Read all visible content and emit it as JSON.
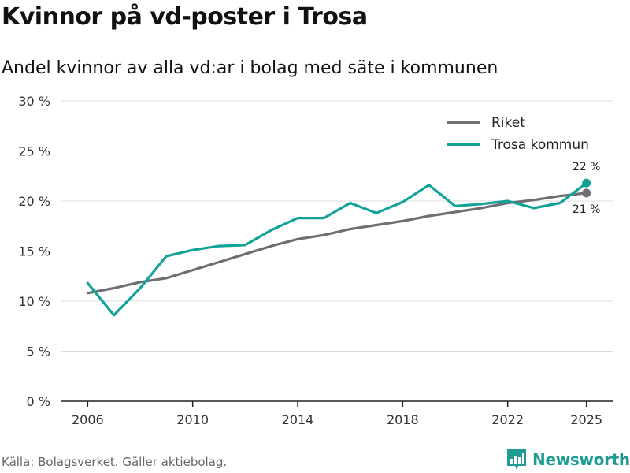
{
  "header": {
    "title": "Kvinnor på vd-poster i Trosa",
    "subtitle": "Andel kvinnor av alla vd:ar i bolag med säte i kommunen"
  },
  "footer": {
    "source": "Källa: Bolagsverket. Gäller aktiebolag.",
    "brand": "Newsworthy"
  },
  "chart_data": {
    "type": "line",
    "title": "Kvinnor på vd-poster i Trosa",
    "subtitle": "Andel kvinnor av alla vd:ar i bolag med säte i kommunen",
    "xlabel": "",
    "ylabel": "",
    "x": [
      2006,
      2007,
      2008,
      2009,
      2010,
      2011,
      2012,
      2013,
      2014,
      2015,
      2016,
      2017,
      2018,
      2019,
      2020,
      2021,
      2022,
      2023,
      2024,
      2025
    ],
    "xlim": [
      2005,
      2026
    ],
    "ylim": [
      0,
      30
    ],
    "x_ticks": [
      2006,
      2010,
      2014,
      2018,
      2022,
      2025
    ],
    "x_tick_labels": [
      "2006",
      "2010",
      "2014",
      "2018",
      "2022",
      "2025"
    ],
    "y_ticks": [
      0,
      5,
      10,
      15,
      20,
      25,
      30
    ],
    "y_tick_labels": [
      "0 %",
      "5 %",
      "10 %",
      "15 %",
      "20 %",
      "25 %",
      "30 %"
    ],
    "grid": true,
    "legend_position": "top-right",
    "series": [
      {
        "name": "Riket",
        "color": "#6f6e75",
        "values": [
          10.8,
          11.3,
          11.9,
          12.3,
          13.1,
          13.9,
          14.7,
          15.5,
          16.2,
          16.6,
          17.2,
          17.6,
          18.0,
          18.5,
          18.9,
          19.3,
          19.8,
          20.1,
          20.5,
          20.8
        ],
        "end_label": "21 %"
      },
      {
        "name": "Trosa kommun",
        "color": "#13a298",
        "values": [
          11.8,
          8.6,
          11.3,
          14.5,
          15.1,
          15.5,
          15.6,
          17.1,
          18.3,
          18.3,
          19.8,
          18.8,
          19.9,
          21.6,
          19.5,
          19.7,
          20.0,
          19.3,
          19.8,
          21.8
        ],
        "end_label": "22 %"
      }
    ]
  }
}
